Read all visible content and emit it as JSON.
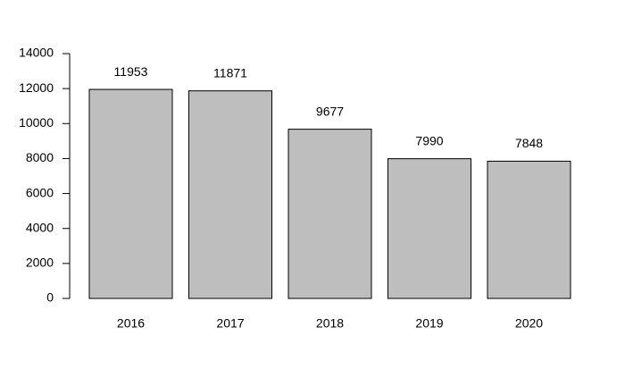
{
  "chart_data": {
    "type": "bar",
    "categories": [
      "2016",
      "2017",
      "2018",
      "2019",
      "2020"
    ],
    "values": [
      11953,
      11871,
      9677,
      7990,
      7848
    ],
    "color": "#bebebe",
    "ylim": [
      0,
      14000
    ],
    "yticks": [
      0,
      2000,
      4000,
      6000,
      8000,
      10000,
      12000,
      14000
    ]
  }
}
